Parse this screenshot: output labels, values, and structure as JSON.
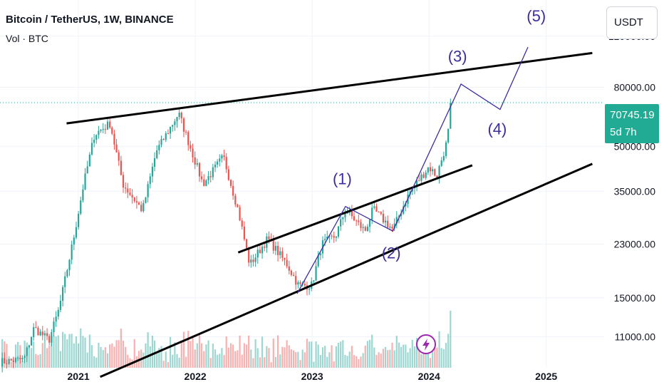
{
  "header": {
    "title": "Bitcoin / TetherUS, 1W, BINANCE",
    "volume_label": "Vol · BTC"
  },
  "currency_button": "USDT",
  "last_price": {
    "value": "70745.19",
    "countdown": "5d 7h"
  },
  "colors": {
    "up": "#26a69a",
    "down": "#ef5350",
    "wave": "#3c2d9e",
    "trendline": "#000000",
    "price_tag": "#22ab94"
  },
  "chart_data": {
    "type": "candlestick",
    "symbol": "BTCUSDT",
    "interval": "1W",
    "y_scale": "log",
    "ylim": [
      8600,
      160000
    ],
    "y_ticks": [
      "120000.00",
      "80000.00",
      "50000.00",
      "35000.00",
      "23000.00",
      "15000.00",
      "11000.00"
    ],
    "x_ticks": [
      "2021",
      "2022",
      "2023",
      "2024",
      "2025"
    ],
    "xlim": [
      "2020-05-01",
      "2025-07-01"
    ],
    "anchor_closes": [
      {
        "date": "2020-05-01",
        "close": 9000
      },
      {
        "date": "2020-07-15",
        "close": 9200
      },
      {
        "date": "2020-08-15",
        "close": 11800
      },
      {
        "date": "2020-10-01",
        "close": 10700
      },
      {
        "date": "2020-11-01",
        "close": 13700
      },
      {
        "date": "2020-12-15",
        "close": 23500
      },
      {
        "date": "2021-01-15",
        "close": 36000
      },
      {
        "date": "2021-02-20",
        "close": 55000
      },
      {
        "date": "2021-04-10",
        "close": 60000
      },
      {
        "date": "2021-05-20",
        "close": 37000
      },
      {
        "date": "2021-07-20",
        "close": 30000
      },
      {
        "date": "2021-09-01",
        "close": 48000
      },
      {
        "date": "2021-11-10",
        "close": 65000
      },
      {
        "date": "2022-01-25",
        "close": 37000
      },
      {
        "date": "2022-03-30",
        "close": 46000
      },
      {
        "date": "2022-05-15",
        "close": 30000
      },
      {
        "date": "2022-06-20",
        "close": 19500
      },
      {
        "date": "2022-08-15",
        "close": 24000
      },
      {
        "date": "2022-10-15",
        "close": 19500
      },
      {
        "date": "2022-11-20",
        "close": 16500
      },
      {
        "date": "2022-12-31",
        "close": 16600
      },
      {
        "date": "2023-01-31",
        "close": 23000
      },
      {
        "date": "2023-03-15",
        "close": 24500
      },
      {
        "date": "2023-04-15",
        "close": 30200
      },
      {
        "date": "2023-06-15",
        "close": 25500
      },
      {
        "date": "2023-07-10",
        "close": 30300
      },
      {
        "date": "2023-09-10",
        "close": 25800
      },
      {
        "date": "2023-10-31",
        "close": 34500
      },
      {
        "date": "2023-12-31",
        "close": 42500
      },
      {
        "date": "2024-01-25",
        "close": 39500
      },
      {
        "date": "2024-02-25",
        "close": 51500
      },
      {
        "date": "2024-03-14",
        "close": 70745
      }
    ],
    "last_price": 70745.19,
    "trendlines": [
      {
        "name": "upper-resistance",
        "from": {
          "date": "2020-11-25",
          "price": 60000
        },
        "to": {
          "date": "2025-05-25",
          "price": 105000
        }
      },
      {
        "name": "middle-channel",
        "from": {
          "date": "2022-05-15",
          "price": 21500
        },
        "to": {
          "date": "2024-05-15",
          "price": 43000
        }
      },
      {
        "name": "lower-support",
        "from": {
          "date": "2021-03-10",
          "price": 8000
        },
        "to": {
          "date": "2025-05-25",
          "price": 43500
        }
      }
    ],
    "wave_labels": [
      {
        "text": "(1)",
        "date": "2023-04-05",
        "price": 37000
      },
      {
        "text": "(2)",
        "date": "2023-09-05",
        "price": 20500
      },
      {
        "text": "(3)",
        "date": "2024-03-30",
        "price": 98000
      },
      {
        "text": "(4)",
        "date": "2024-08-01",
        "price": 55000
      },
      {
        "text": "(5)",
        "date": "2024-12-01",
        "price": 135000
      }
    ],
    "projection_path": [
      {
        "date": "2022-11-15",
        "price": 15500
      },
      {
        "date": "2023-04-15",
        "price": 31000
      },
      {
        "date": "2023-09-10",
        "price": 25500
      },
      {
        "date": "2024-03-14",
        "price": 70745
      },
      {
        "date": "2024-04-10",
        "price": 82000
      },
      {
        "date": "2024-08-10",
        "price": 67000
      },
      {
        "date": "2024-11-05",
        "price": 110000
      }
    ]
  }
}
